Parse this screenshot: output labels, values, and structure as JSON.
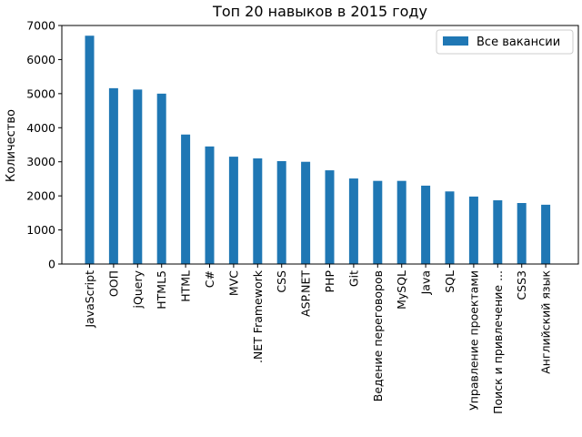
{
  "chart_data": {
    "type": "bar",
    "title": "Топ 20 навыков в 2015 году",
    "xlabel": "",
    "ylabel": "Количество",
    "ylim": [
      0,
      7000
    ],
    "yticks": [
      0,
      1000,
      2000,
      3000,
      4000,
      5000,
      6000,
      7000
    ],
    "grid": false,
    "legend_position": "top-right",
    "categories": [
      "JavaScript",
      "ООП",
      "jQuery",
      "HTML5",
      "HTML",
      "C#",
      "MVC",
      ".NET Framework",
      "CSS",
      "ASP.NET",
      "PHP",
      "Git",
      "Ведение переговоров",
      "MySQL",
      "Java",
      "SQL",
      "Управление проектами",
      "Поиск и привлечение ...",
      "CSS3",
      "Английский язык"
    ],
    "series": [
      {
        "name": "Все вакансии",
        "color": "#1f77b4",
        "values": [
          6700,
          5160,
          5120,
          5000,
          3800,
          3450,
          3150,
          3100,
          3020,
          3000,
          2750,
          2510,
          2440,
          2440,
          2300,
          2130,
          1980,
          1870,
          1790,
          1740
        ]
      }
    ]
  }
}
